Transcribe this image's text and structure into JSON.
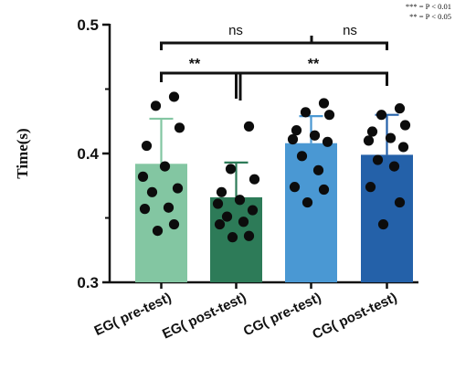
{
  "chart_data": {
    "type": "bar",
    "ylabel": "Time(s)",
    "ylim": [
      0.3,
      0.5
    ],
    "yticks": [
      "0.3",
      "0.4",
      "0.5"
    ],
    "categories": [
      "EG( pre-test)",
      "EG( post-test)",
      "CG( pre-test)",
      "CG( post-test)"
    ],
    "means": [
      0.392,
      0.366,
      0.408,
      0.399
    ],
    "sd": [
      0.035,
      0.027,
      0.021,
      0.031
    ],
    "colors": [
      "#83c6a2",
      "#2d7b58",
      "#4a98d3",
      "#2461a9"
    ],
    "points": [
      [
        0.444,
        0.437,
        0.42,
        0.406,
        0.39,
        0.382,
        0.373,
        0.37,
        0.358,
        0.357,
        0.345,
        0.34
      ],
      [
        0.421,
        0.388,
        0.38,
        0.37,
        0.364,
        0.361,
        0.356,
        0.351,
        0.347,
        0.345,
        0.336,
        0.335
      ],
      [
        0.439,
        0.432,
        0.43,
        0.418,
        0.414,
        0.411,
        0.409,
        0.398,
        0.387,
        0.374,
        0.372,
        0.362
      ],
      [
        0.435,
        0.43,
        0.422,
        0.417,
        0.412,
        0.41,
        0.405,
        0.395,
        0.39,
        0.374,
        0.362,
        0.345
      ]
    ],
    "comparisons": [
      {
        "label": "ns",
        "level": "top",
        "from": [
          0,
          1
        ],
        "to": [
          2,
          3
        ]
      },
      {
        "label": "ns",
        "level": "top",
        "from": [
          2,
          2
        ],
        "to": [
          3,
          3
        ]
      },
      {
        "label": "**",
        "level": "lower",
        "from": [
          0,
          0
        ],
        "to": [
          1,
          1
        ]
      },
      {
        "label": "**",
        "level": "lower",
        "from": [
          1,
          1
        ],
        "to": [
          2,
          3
        ]
      }
    ],
    "notes": [
      "*** = P < 0.01",
      "** = P < 0.05"
    ]
  }
}
